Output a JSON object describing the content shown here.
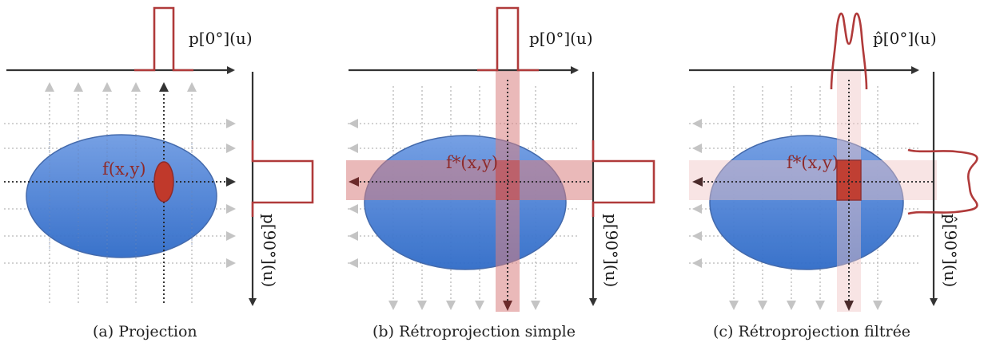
{
  "panels": [
    {
      "caption": "(a) Projection",
      "top_label": "p[0°](u)",
      "side_label": "p[90°](u)",
      "object_label": "f(x,y)"
    },
    {
      "caption": "(b) Rétroprojection simple",
      "top_label": "p[0°](u)",
      "side_label": "p[90°](u)",
      "object_label": "f*(x,y)"
    },
    {
      "caption": "(c) Rétroprojection filtrée",
      "top_label": "p̂[0°](u)",
      "side_label": "p̂[90°](u)",
      "object_label": "f*(x,y)"
    }
  ],
  "colors": {
    "ellipse": "#4a7fd4",
    "profile": "#b03a3a",
    "band": "#d88080",
    "arrow_light": "#c4c4c4",
    "axis": "#333333"
  }
}
